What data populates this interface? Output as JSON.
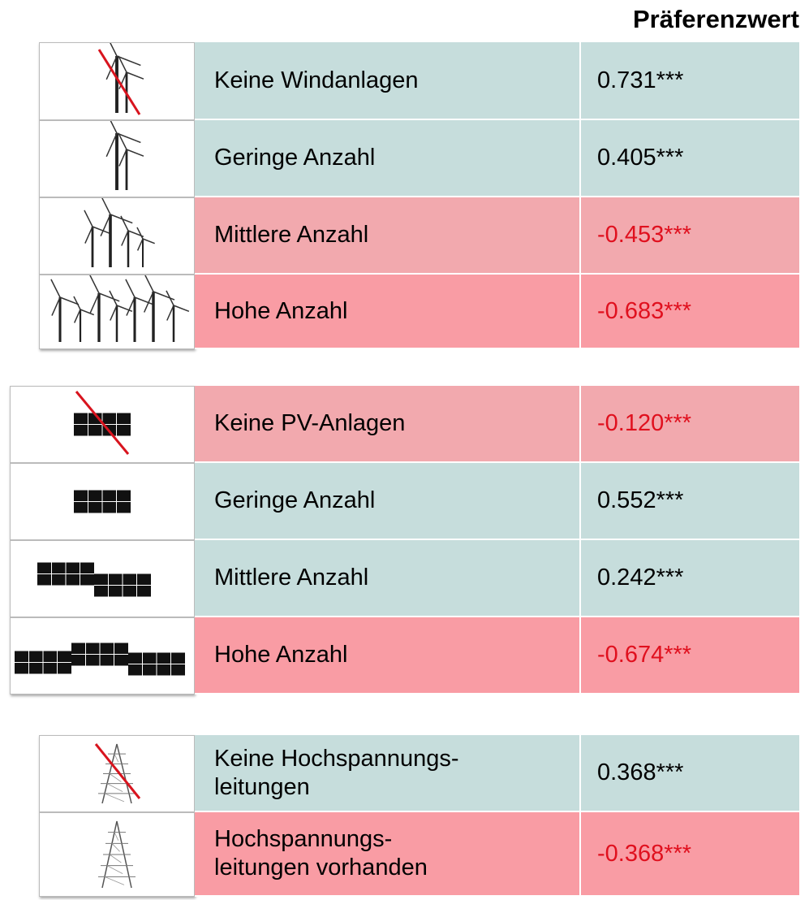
{
  "header": {
    "title": "Präferenzwert"
  },
  "groups": [
    {
      "rows": [
        {
          "label": "Keine Windanlagen",
          "value": "0.731***",
          "background": "#c6dddc",
          "value_color": "#000000"
        },
        {
          "label": "Geringe Anzahl",
          "value": "0.405***",
          "background": "#c6dddc",
          "value_color": "#000000"
        },
        {
          "label": "Mittlere Anzahl",
          "value": "-0.453***",
          "background": "#f2a9ae",
          "value_color": "#e0101e"
        },
        {
          "label": "Hohe Anzahl",
          "value": "-0.683***",
          "background": "#f99ca4",
          "value_color": "#e0101e"
        }
      ]
    },
    {
      "rows": [
        {
          "label": "Keine PV-Anlagen",
          "value": "-0.120***",
          "background": "#f2a9ae",
          "value_color": "#e0101e"
        },
        {
          "label": "Geringe Anzahl",
          "value": "0.552***",
          "background": "#c6dddc",
          "value_color": "#000000"
        },
        {
          "label": "Mittlere Anzahl",
          "value": "0.242***",
          "background": "#c6dddc",
          "value_color": "#000000"
        },
        {
          "label": "Hohe Anzahl",
          "value": "-0.674***",
          "background": "#f99ca4",
          "value_color": "#e0101e"
        }
      ]
    },
    {
      "rows": [
        {
          "label": "Keine Hochspannungs-\nleitungen",
          "value": "0.368***",
          "background": "#c6dddc",
          "value_color": "#000000"
        },
        {
          "label": "Hochspannungs-\nleitungen vorhanden",
          "value": "-0.368***",
          "background": "#f99ca4",
          "value_color": "#e0101e"
        }
      ]
    }
  ]
}
